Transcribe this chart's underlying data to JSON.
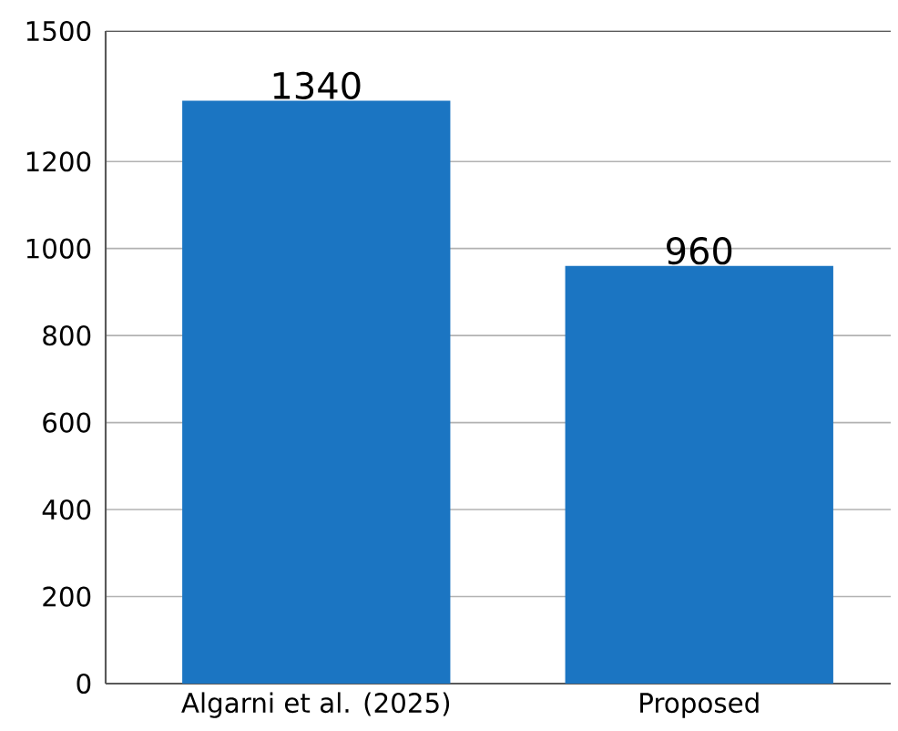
{
  "chart_data": {
    "type": "bar",
    "categories": [
      "Algarni et al. (2025)",
      "Proposed"
    ],
    "values": [
      1340,
      960
    ],
    "data_labels": true,
    "color": "#1b75c2",
    "ylim": [
      0,
      1500
    ],
    "yticks": [
      0,
      200,
      400,
      600,
      800,
      1000,
      1200,
      1500
    ],
    "grid": "y"
  }
}
